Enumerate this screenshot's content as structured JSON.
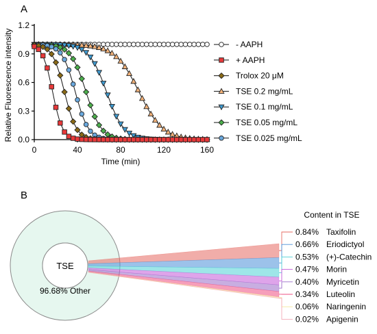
{
  "panels": {
    "a": "A",
    "b": "B"
  },
  "chart_data": [
    {
      "type": "line",
      "panel": "A",
      "title": "",
      "xlabel": "Time (min)",
      "ylabel": "Relative Fluorescence intensity",
      "xlim": [
        0,
        160
      ],
      "ylim": [
        0.0,
        1.2
      ],
      "x_ticks": [
        "0",
        "40",
        "80",
        "120",
        "160"
      ],
      "y_ticks": [
        "0.0",
        "0.3",
        "0.6",
        "0.9",
        "1.2"
      ],
      "x": [
        0,
        4,
        8,
        12,
        16,
        20,
        24,
        28,
        32,
        36,
        40,
        44,
        48,
        52,
        56,
        60,
        64,
        68,
        72,
        76,
        80,
        84,
        88,
        92,
        96,
        100,
        104,
        108,
        112,
        116,
        120,
        124,
        128,
        132,
        136,
        140,
        144,
        148,
        152,
        156,
        160
      ],
      "legend_position": "right",
      "series": [
        {
          "name": "- AAPH",
          "marker": "circle",
          "color": "#ffffff",
          "midpoint": null,
          "width": null,
          "plateau": 1.0
        },
        {
          "name": "+ AAPH",
          "marker": "square",
          "color": "#e8393a",
          "midpoint": 17,
          "width": 4.5,
          "plateau": 1.0
        },
        {
          "name": "Trolox 20 μM",
          "marker": "diamond",
          "color": "#8a6a16",
          "midpoint": 28,
          "width": 5.5,
          "plateau": 1.0
        },
        {
          "name": "TSE 0.2 mg/mL",
          "marker": "triangle-up",
          "color": "#f2b27a",
          "midpoint": 97,
          "width": 11,
          "plateau": 1.0
        },
        {
          "name": "TSE 0.1 mg/mL",
          "marker": "triangle-down",
          "color": "#3f9ad0",
          "midpoint": 67,
          "width": 8,
          "plateau": 1.0
        },
        {
          "name": "TSE 0.05 mg/mL",
          "marker": "diamond",
          "color": "#4cae4c",
          "midpoint": 48,
          "width": 7,
          "plateau": 1.0
        },
        {
          "name": "TSE 0.025 mg/mL",
          "marker": "circle",
          "color": "#6aa8dd",
          "midpoint": 38,
          "width": 6,
          "plateau": 1.0
        }
      ]
    },
    {
      "type": "pie",
      "panel": "B",
      "center_label": "TSE",
      "main_slice": {
        "label": "Other",
        "value": 96.68,
        "display": "96.68%"
      },
      "breakdown_title": "Content in TSE",
      "slices": [
        {
          "label": "Taxifolin",
          "value": 0.84,
          "display": "0.84%",
          "color": "#e66a62"
        },
        {
          "label": "Eriodictyol",
          "value": 0.66,
          "display": "0.66%",
          "color": "#4a8fd8"
        },
        {
          "label": "(+)-Catechin",
          "value": 0.53,
          "display": "0.53%",
          "color": "#4ed1d6"
        },
        {
          "label": "Morin",
          "value": 0.47,
          "display": "0.47%",
          "color": "#c35ad8"
        },
        {
          "label": "Myricetin",
          "value": 0.4,
          "display": "0.40%",
          "color": "#9b6cc9"
        },
        {
          "label": "Luteolin",
          "value": 0.34,
          "display": "0.34%",
          "color": "#ee4f82"
        },
        {
          "label": "Naringenin",
          "value": 0.06,
          "display": "0.06%",
          "color": "#f6e79a"
        },
        {
          "label": "Apigenin",
          "value": 0.02,
          "display": "0.02%",
          "color": "#f3a9b7"
        }
      ],
      "colors": {
        "donut_fill": "#e6f7ef",
        "donut_stroke": "#8a8a8a"
      }
    }
  ]
}
